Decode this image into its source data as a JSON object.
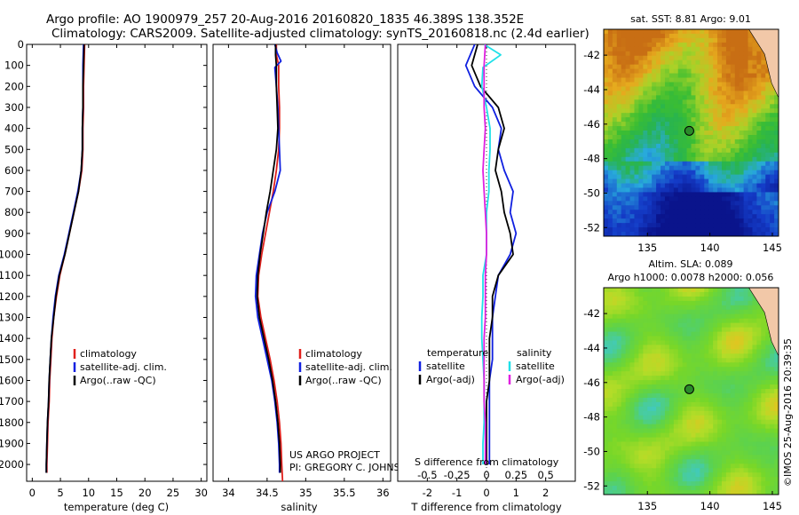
{
  "figure": {
    "title_line1": "Argo profile: AO 1900979_257 20-Aug-2016 20160820_1835 46.389S 138.352E",
    "title_line2": "Climatology: CARS2009. Satellite-adjusted climatology: synTS_20160818.nc (2.4d earlier)",
    "credit_line1": "US ARGO PROJECT",
    "credit_line2": "PI: GREGORY C. JOHNSON",
    "stamp": "©IMOS 25-Aug-2016 20:39:35"
  },
  "colors": {
    "climatology": "#e0201c",
    "satellite": "#1020e0",
    "argo": "#000000",
    "salinity_satellite": "#20e0e8",
    "salinity_argo": "#e020e0",
    "marker": "#2a8a2a"
  },
  "depth_axis": {
    "ticks": [
      "0",
      "100",
      "200",
      "300",
      "400",
      "500",
      "600",
      "700",
      "800",
      "900",
      "1000",
      "1100",
      "1200",
      "1300",
      "1400",
      "1500",
      "1600",
      "1700",
      "1800",
      "1900",
      "2000"
    ],
    "range": [
      0,
      2080
    ]
  },
  "chart_data": [
    {
      "type": "line",
      "panel": "temperature",
      "xlabel": "temperature (deg C)",
      "xlim": [
        -1,
        31
      ],
      "xticks": [
        "0",
        "5",
        "10",
        "15",
        "20",
        "25",
        "30"
      ],
      "ylim": [
        2080,
        0
      ],
      "legend": {
        "placement": "lower-center",
        "entries": [
          "climatology",
          "satellite-adj. clim.",
          "Argo(..raw -QC)"
        ]
      },
      "series": [
        {
          "name": "climatology",
          "color": "#e0201c",
          "points": [
            [
              9.3,
              0
            ],
            [
              9.2,
              100
            ],
            [
              9.1,
              200
            ],
            [
              9.1,
              300
            ],
            [
              9.0,
              400
            ],
            [
              9.0,
              500
            ],
            [
              8.8,
              600
            ],
            [
              8.2,
              700
            ],
            [
              7.4,
              800
            ],
            [
              6.6,
              900
            ],
            [
              5.8,
              1000
            ],
            [
              4.9,
              1100
            ],
            [
              4.3,
              1200
            ],
            [
              3.8,
              1300
            ],
            [
              3.5,
              1400
            ],
            [
              3.3,
              1500
            ],
            [
              3.1,
              1600
            ],
            [
              3.0,
              1700
            ],
            [
              2.8,
              1800
            ],
            [
              2.7,
              1900
            ],
            [
              2.6,
              2000
            ],
            [
              2.6,
              2040
            ]
          ]
        },
        {
          "name": "satellite-adj. clim.",
          "color": "#1020e0",
          "points": [
            [
              9.1,
              0
            ],
            [
              9.0,
              100
            ],
            [
              9.0,
              200
            ],
            [
              9.0,
              300
            ],
            [
              8.9,
              400
            ],
            [
              8.9,
              500
            ],
            [
              8.7,
              600
            ],
            [
              8.1,
              700
            ],
            [
              7.3,
              800
            ],
            [
              6.5,
              900
            ],
            [
              5.7,
              1000
            ],
            [
              4.7,
              1100
            ],
            [
              4.1,
              1200
            ],
            [
              3.7,
              1300
            ],
            [
              3.4,
              1400
            ],
            [
              3.2,
              1500
            ],
            [
              3.0,
              1600
            ],
            [
              2.9,
              1700
            ],
            [
              2.7,
              1800
            ],
            [
              2.6,
              1900
            ],
            [
              2.5,
              2000
            ],
            [
              2.5,
              2040
            ]
          ]
        },
        {
          "name": "Argo(..raw -QC)",
          "color": "#000000",
          "points": [
            [
              9.2,
              0
            ],
            [
              9.1,
              100
            ],
            [
              9.0,
              200
            ],
            [
              9.0,
              300
            ],
            [
              8.9,
              400
            ],
            [
              8.9,
              500
            ],
            [
              8.7,
              600
            ],
            [
              8.2,
              700
            ],
            [
              7.4,
              800
            ],
            [
              6.6,
              900
            ],
            [
              5.8,
              1000
            ],
            [
              4.8,
              1100
            ],
            [
              4.2,
              1200
            ],
            [
              3.8,
              1300
            ],
            [
              3.4,
              1400
            ],
            [
              3.2,
              1500
            ],
            [
              3.0,
              1600
            ],
            [
              2.9,
              1700
            ],
            [
              2.7,
              1800
            ],
            [
              2.6,
              1900
            ],
            [
              2.5,
              2000
            ],
            [
              2.5,
              2040
            ]
          ]
        }
      ]
    },
    {
      "type": "line",
      "panel": "salinity",
      "xlabel": "salinity",
      "xlim": [
        33.8,
        36.1
      ],
      "xticks": [
        "34",
        "34.5",
        "35",
        "35.5",
        "36"
      ],
      "ylim": [
        2080,
        0
      ],
      "legend": {
        "placement": "lower-right",
        "entries": [
          "climatology",
          "satellite-adj. clim.",
          "Argo(..raw -QC)"
        ]
      },
      "series": [
        {
          "name": "climatology",
          "color": "#e0201c",
          "points": [
            [
              34.62,
              0
            ],
            [
              34.62,
              50
            ],
            [
              34.65,
              100
            ],
            [
              34.65,
              200
            ],
            [
              34.66,
              300
            ],
            [
              34.66,
              400
            ],
            [
              34.65,
              500
            ],
            [
              34.62,
              600
            ],
            [
              34.58,
              700
            ],
            [
              34.53,
              800
            ],
            [
              34.48,
              900
            ],
            [
              34.43,
              1000
            ],
            [
              34.39,
              1100
            ],
            [
              34.38,
              1200
            ],
            [
              34.42,
              1300
            ],
            [
              34.48,
              1400
            ],
            [
              34.54,
              1500
            ],
            [
              34.59,
              1600
            ],
            [
              34.63,
              1700
            ],
            [
              34.66,
              1800
            ],
            [
              34.68,
              1900
            ],
            [
              34.69,
              2000
            ],
            [
              34.7,
              2080
            ]
          ]
        },
        {
          "name": "satellite-adj. clim.",
          "color": "#1020e0",
          "points": [
            [
              34.6,
              0
            ],
            [
              34.63,
              40
            ],
            [
              34.68,
              80
            ],
            [
              34.6,
              110
            ],
            [
              34.62,
              200
            ],
            [
              34.64,
              300
            ],
            [
              34.65,
              400
            ],
            [
              34.66,
              500
            ],
            [
              34.67,
              600
            ],
            [
              34.6,
              700
            ],
            [
              34.5,
              800
            ],
            [
              34.44,
              900
            ],
            [
              34.4,
              1000
            ],
            [
              34.36,
              1100
            ],
            [
              34.35,
              1200
            ],
            [
              34.38,
              1300
            ],
            [
              34.44,
              1400
            ],
            [
              34.5,
              1500
            ],
            [
              34.56,
              1600
            ],
            [
              34.6,
              1700
            ],
            [
              34.63,
              1800
            ],
            [
              34.65,
              1900
            ],
            [
              34.66,
              2000
            ],
            [
              34.66,
              2040
            ]
          ]
        },
        {
          "name": "Argo(..raw -QC)",
          "color": "#000000",
          "points": [
            [
              34.61,
              0
            ],
            [
              34.61,
              50
            ],
            [
              34.62,
              100
            ],
            [
              34.62,
              200
            ],
            [
              34.63,
              300
            ],
            [
              34.64,
              400
            ],
            [
              34.62,
              500
            ],
            [
              34.58,
              600
            ],
            [
              34.54,
              700
            ],
            [
              34.49,
              800
            ],
            [
              34.45,
              900
            ],
            [
              34.41,
              1000
            ],
            [
              34.38,
              1100
            ],
            [
              34.37,
              1200
            ],
            [
              34.4,
              1300
            ],
            [
              34.46,
              1400
            ],
            [
              34.52,
              1500
            ],
            [
              34.57,
              1600
            ],
            [
              34.61,
              1700
            ],
            [
              34.64,
              1800
            ],
            [
              34.66,
              1900
            ],
            [
              34.67,
              2000
            ],
            [
              34.67,
              2040
            ]
          ]
        }
      ]
    },
    {
      "type": "line",
      "panel": "difference",
      "xlabel": "T difference from climatology",
      "xlabel_top": "S difference from climatology",
      "xlim": [
        -3,
        3
      ],
      "xticks": [
        "-2",
        "-1",
        "0",
        "1",
        "2"
      ],
      "xlim_top": [
        -0.75,
        0.75
      ],
      "xticks_top": [
        "-0.5",
        "-0.25",
        "0",
        "0.25",
        "0.5"
      ],
      "ylim": [
        2080,
        0
      ],
      "legend": {
        "placement": "lower-center",
        "header_t": "temperature",
        "header_s": "salinity",
        "entries": [
          "satellite",
          "Argo(-adj)",
          "satellite",
          "Argo(-adj)"
        ]
      },
      "series": [
        {
          "name": "satellite",
          "group": "temperature",
          "color": "#1020e0",
          "points": [
            [
              -0.4,
              0
            ],
            [
              -0.7,
              100
            ],
            [
              -0.4,
              200
            ],
            [
              0.2,
              300
            ],
            [
              0.5,
              400
            ],
            [
              0.4,
              500
            ],
            [
              0.6,
              600
            ],
            [
              0.9,
              700
            ],
            [
              0.8,
              800
            ],
            [
              1.0,
              900
            ],
            [
              0.8,
              1000
            ],
            [
              0.4,
              1100
            ],
            [
              0.3,
              1200
            ],
            [
              0.2,
              1300
            ],
            [
              0.2,
              1400
            ],
            [
              0.2,
              1500
            ],
            [
              0.1,
              1600
            ],
            [
              0.1,
              1700
            ],
            [
              0.1,
              1800
            ],
            [
              0.1,
              1900
            ],
            [
              0.1,
              2000
            ]
          ]
        },
        {
          "name": "Argo(-adj)",
          "group": "temperature",
          "color": "#000000",
          "points": [
            [
              -0.3,
              0
            ],
            [
              -0.5,
              100
            ],
            [
              -0.2,
              200
            ],
            [
              0.4,
              300
            ],
            [
              0.6,
              400
            ],
            [
              0.4,
              500
            ],
            [
              0.3,
              600
            ],
            [
              0.5,
              700
            ],
            [
              0.6,
              800
            ],
            [
              0.8,
              900
            ],
            [
              0.9,
              1000
            ],
            [
              0.4,
              1100
            ],
            [
              0.2,
              1200
            ],
            [
              0.2,
              1300
            ],
            [
              0.1,
              1400
            ],
            [
              0.1,
              1500
            ],
            [
              0.1,
              1600
            ],
            [
              0.0,
              1700
            ],
            [
              0.0,
              1800
            ],
            [
              0.0,
              1900
            ],
            [
              0.0,
              2000
            ]
          ]
        },
        {
          "name": "satellite",
          "group": "salinity",
          "color": "#20e0e8",
          "points": [
            [
              -0.02,
              0
            ],
            [
              0.12,
              50
            ],
            [
              -0.03,
              110
            ],
            [
              -0.04,
              200
            ],
            [
              0.0,
              300
            ],
            [
              0.03,
              400
            ],
            [
              0.03,
              500
            ],
            [
              0.02,
              600
            ],
            [
              0.02,
              700
            ],
            [
              0.0,
              800
            ],
            [
              0.0,
              900
            ],
            [
              0.0,
              1000
            ],
            [
              -0.03,
              1100
            ],
            [
              -0.03,
              1200
            ],
            [
              -0.04,
              1300
            ],
            [
              -0.04,
              1400
            ],
            [
              -0.03,
              1500
            ],
            [
              -0.02,
              1600
            ],
            [
              -0.02,
              1700
            ],
            [
              -0.02,
              1800
            ],
            [
              -0.03,
              1900
            ],
            [
              -0.03,
              2000
            ]
          ]
        },
        {
          "name": "Argo(-adj)",
          "group": "salinity",
          "color": "#e020e0",
          "points": [
            [
              -0.01,
              0
            ],
            [
              -0.02,
              100
            ],
            [
              -0.02,
              200
            ],
            [
              -0.02,
              300
            ],
            [
              -0.01,
              400
            ],
            [
              -0.02,
              500
            ],
            [
              -0.03,
              600
            ],
            [
              -0.02,
              700
            ],
            [
              -0.01,
              800
            ],
            [
              0.0,
              900
            ],
            [
              0.0,
              1000
            ],
            [
              -0.01,
              1100
            ],
            [
              -0.01,
              1200
            ],
            [
              -0.01,
              1300
            ],
            [
              -0.02,
              1400
            ],
            [
              -0.02,
              1500
            ],
            [
              -0.02,
              1600
            ],
            [
              -0.02,
              1700
            ],
            [
              -0.01,
              1800
            ],
            [
              -0.01,
              1900
            ],
            [
              -0.01,
              2000
            ]
          ]
        }
      ]
    },
    {
      "type": "heatmap",
      "panel": "sst-map",
      "title": "sat. SST: 8.81  Argo: 9.01",
      "xlim": [
        131.5,
        145.5
      ],
      "ylim": [
        -52.5,
        -40.5
      ],
      "xticks": [
        "135",
        "140",
        "145"
      ],
      "yticks": [
        "-42",
        "-44",
        "-46",
        "-48",
        "-50",
        "-52"
      ],
      "marker": {
        "lon": 138.352,
        "lat": -46.389
      }
    },
    {
      "type": "heatmap",
      "panel": "sla-map",
      "title_line1": "Altim. SLA: 0.089",
      "title_line2": "Argo h1000: 0.0078 h2000: 0.056",
      "xlim": [
        131.5,
        145.5
      ],
      "ylim": [
        -52.5,
        -40.5
      ],
      "xticks": [
        "135",
        "140",
        "145"
      ],
      "yticks": [
        "-42",
        "-44",
        "-46",
        "-48",
        "-50",
        "-52"
      ],
      "marker": {
        "lon": 138.352,
        "lat": -46.389
      }
    }
  ]
}
